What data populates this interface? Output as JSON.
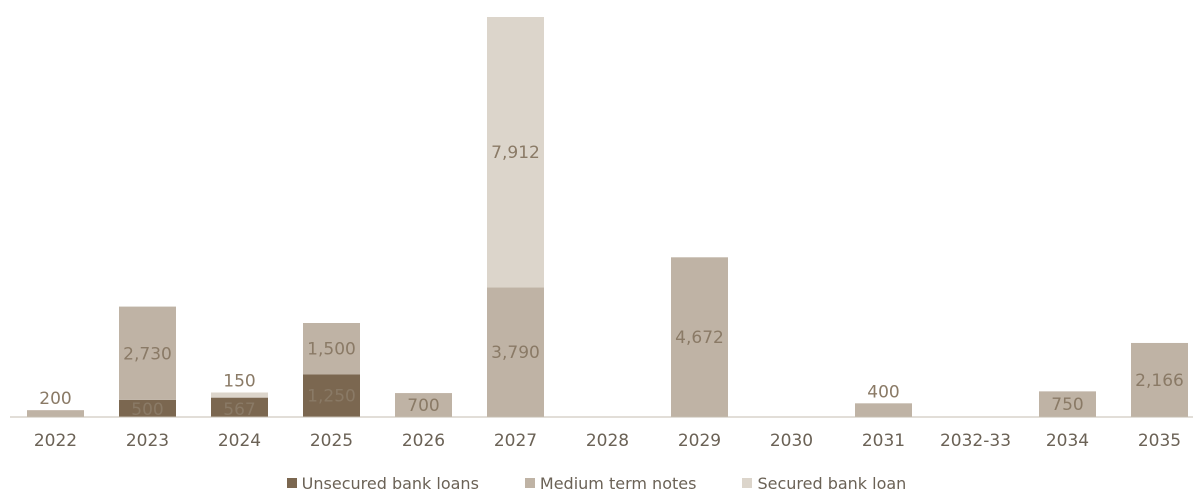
{
  "chart_data": {
    "type": "bar",
    "stacked": true,
    "categories": [
      "2022",
      "2023",
      "2024",
      "2025",
      "2026",
      "2027",
      "2028",
      "2029",
      "2030",
      "2031",
      "2032-33",
      "2034",
      "2035"
    ],
    "series": [
      {
        "name": "Unsecured bank loans",
        "color": "#7b6750",
        "values": [
          0,
          500,
          567,
          1250,
          0,
          0,
          0,
          0,
          0,
          0,
          0,
          0,
          0
        ]
      },
      {
        "name": "Medium term notes",
        "color": "#bfb3a5",
        "values": [
          200,
          2730,
          0,
          1500,
          700,
          3790,
          0,
          4672,
          0,
          400,
          0,
          750,
          2166
        ]
      },
      {
        "name": "Secured bank loan",
        "color": "#dcd5cb",
        "values": [
          0,
          0,
          150,
          0,
          0,
          7912,
          0,
          0,
          0,
          0,
          0,
          0,
          0
        ]
      }
    ],
    "data_labels": [
      [
        "",
        "500",
        "567",
        "1,250",
        "",
        "",
        "",
        "",
        "",
        "",
        "",
        "",
        ""
      ],
      [
        "200",
        "2,730",
        "",
        "1,500",
        "700",
        "3,790",
        "",
        "4,672",
        "",
        "400",
        "",
        "750",
        "2,166"
      ],
      [
        "",
        "",
        "150",
        "",
        "",
        "7,912",
        "",
        "",
        "",
        "",
        "",
        "",
        ""
      ]
    ],
    "ylim": [
      0,
      11702
    ],
    "legend_position": "bottom-center",
    "grid": false
  }
}
